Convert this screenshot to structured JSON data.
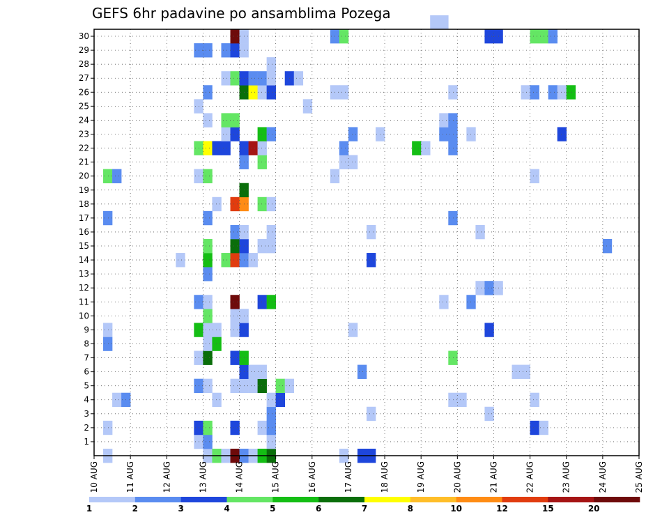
{
  "chart_data": {
    "type": "heatmap",
    "title": "GEFS 6hr padavine po ansamblima Pozega",
    "xlabel": "",
    "ylabel": "",
    "x_tick_labels": [
      "10 AUG",
      "11 AUG",
      "12 AUG",
      "13 AUG",
      "14 AUG",
      "15 AUG",
      "16 AUG",
      "17 AUG",
      "18 AUG",
      "19 AUG",
      "20 AUG",
      "21 AUG",
      "22 AUG",
      "23 AUG",
      "24 AUG",
      "25 AUG"
    ],
    "y_tick_labels": [
      "1",
      "2",
      "3",
      "4",
      "5",
      "6",
      "7",
      "8",
      "9",
      "10",
      "11",
      "12",
      "13",
      "14",
      "15",
      "16",
      "17",
      "18",
      "19",
      "20",
      "21",
      "22",
      "23",
      "24",
      "25",
      "26",
      "27",
      "28",
      "29",
      "30"
    ],
    "x_range": [
      0,
      60
    ],
    "y_range": [
      0,
      30
    ],
    "x_unit_note": "6-hour steps from 10 AUG 00Z",
    "grid": true,
    "colorbar": {
      "labels": [
        "1",
        "2",
        "3",
        "4",
        "5",
        "6",
        "7",
        "8",
        "10",
        "12",
        "15",
        "20"
      ],
      "colors": [
        "#b4c8f8",
        "#5a8cf0",
        "#1e46dc",
        "#64e664",
        "#14be14",
        "#0a6e0a",
        "#ffff00",
        "#ffbe28",
        "#ff8c14",
        "#e13c0f",
        "#a51414",
        "#6e0a0a"
      ]
    },
    "cells": [
      [
        1,
        0,
        1
      ],
      [
        12,
        0,
        1
      ],
      [
        13,
        0,
        4
      ],
      [
        14,
        0,
        1
      ],
      [
        15,
        0,
        12
      ],
      [
        16,
        0,
        2
      ],
      [
        17,
        0,
        1
      ],
      [
        18,
        0,
        5
      ],
      [
        19,
        0,
        6
      ],
      [
        27,
        0,
        1
      ],
      [
        29,
        0,
        3
      ],
      [
        30,
        0,
        3
      ],
      [
        11,
        1,
        1
      ],
      [
        12,
        1,
        2
      ],
      [
        19,
        1,
        1
      ],
      [
        1,
        2,
        1
      ],
      [
        11,
        2,
        3
      ],
      [
        12,
        2,
        4
      ],
      [
        15,
        2,
        3
      ],
      [
        18,
        2,
        1
      ],
      [
        19,
        2,
        2
      ],
      [
        48,
        2,
        3
      ],
      [
        49,
        2,
        1
      ],
      [
        19,
        3,
        2
      ],
      [
        30,
        3,
        1
      ],
      [
        43,
        3,
        1
      ],
      [
        2,
        4,
        1
      ],
      [
        3,
        4,
        2
      ],
      [
        13,
        4,
        1
      ],
      [
        19,
        4,
        1
      ],
      [
        20,
        4,
        3
      ],
      [
        39,
        4,
        1
      ],
      [
        40,
        4,
        1
      ],
      [
        48,
        4,
        1
      ],
      [
        11,
        5,
        2
      ],
      [
        12,
        5,
        1
      ],
      [
        15,
        5,
        1
      ],
      [
        16,
        5,
        1
      ],
      [
        17,
        5,
        1
      ],
      [
        18,
        5,
        6
      ],
      [
        20,
        5,
        4
      ],
      [
        21,
        5,
        1
      ],
      [
        16,
        6,
        3
      ],
      [
        17,
        6,
        1
      ],
      [
        18,
        6,
        1
      ],
      [
        29,
        6,
        2
      ],
      [
        46,
        6,
        1
      ],
      [
        47,
        6,
        1
      ],
      [
        11,
        7,
        1
      ],
      [
        12,
        7,
        6
      ],
      [
        15,
        7,
        3
      ],
      [
        16,
        7,
        5
      ],
      [
        39,
        7,
        4
      ],
      [
        1,
        8,
        2
      ],
      [
        12,
        8,
        1
      ],
      [
        13,
        8,
        5
      ],
      [
        1,
        9,
        1
      ],
      [
        11,
        9,
        5
      ],
      [
        12,
        9,
        1
      ],
      [
        13,
        9,
        1
      ],
      [
        15,
        9,
        1
      ],
      [
        16,
        9,
        3
      ],
      [
        28,
        9,
        1
      ],
      [
        43,
        9,
        3
      ],
      [
        12,
        10,
        4
      ],
      [
        15,
        10,
        1
      ],
      [
        16,
        10,
        1
      ],
      [
        11,
        11,
        2
      ],
      [
        12,
        11,
        1
      ],
      [
        15,
        11,
        12
      ],
      [
        18,
        11,
        3
      ],
      [
        19,
        11,
        5
      ],
      [
        38,
        11,
        1
      ],
      [
        41,
        11,
        2
      ],
      [
        42,
        12,
        1
      ],
      [
        43,
        12,
        2
      ],
      [
        44,
        12,
        1
      ],
      [
        12,
        13,
        2
      ],
      [
        9,
        14,
        1
      ],
      [
        12,
        14,
        5
      ],
      [
        14,
        14,
        4
      ],
      [
        15,
        14,
        10
      ],
      [
        16,
        14,
        2
      ],
      [
        17,
        14,
        1
      ],
      [
        30,
        14,
        3
      ],
      [
        12,
        15,
        4
      ],
      [
        15,
        15,
        6
      ],
      [
        16,
        15,
        3
      ],
      [
        18,
        15,
        1
      ],
      [
        19,
        15,
        1
      ],
      [
        56,
        15,
        2
      ],
      [
        15,
        16,
        2
      ],
      [
        16,
        16,
        1
      ],
      [
        19,
        16,
        1
      ],
      [
        30,
        16,
        1
      ],
      [
        42,
        16,
        1
      ],
      [
        1,
        17,
        2
      ],
      [
        12,
        17,
        2
      ],
      [
        39,
        17,
        2
      ],
      [
        13,
        18,
        1
      ],
      [
        15,
        18,
        10
      ],
      [
        16,
        18,
        9
      ],
      [
        18,
        18,
        4
      ],
      [
        19,
        18,
        1
      ],
      [
        16,
        19,
        6
      ],
      [
        1,
        20,
        4
      ],
      [
        2,
        20,
        2
      ],
      [
        11,
        20,
        1
      ],
      [
        12,
        20,
        4
      ],
      [
        26,
        20,
        1
      ],
      [
        48,
        20,
        1
      ],
      [
        16,
        21,
        2
      ],
      [
        18,
        21,
        4
      ],
      [
        27,
        21,
        1
      ],
      [
        28,
        21,
        1
      ],
      [
        11,
        22,
        4
      ],
      [
        12,
        22,
        7
      ],
      [
        13,
        22,
        3
      ],
      [
        14,
        22,
        3
      ],
      [
        16,
        22,
        3
      ],
      [
        17,
        22,
        11
      ],
      [
        18,
        22,
        1
      ],
      [
        27,
        22,
        2
      ],
      [
        35,
        22,
        5
      ],
      [
        36,
        22,
        1
      ],
      [
        39,
        22,
        2
      ],
      [
        14,
        23,
        1
      ],
      [
        15,
        23,
        3
      ],
      [
        18,
        23,
        5
      ],
      [
        19,
        23,
        2
      ],
      [
        28,
        23,
        2
      ],
      [
        31,
        23,
        1
      ],
      [
        38,
        23,
        2
      ],
      [
        39,
        23,
        2
      ],
      [
        41,
        23,
        1
      ],
      [
        51,
        23,
        3
      ],
      [
        12,
        24,
        1
      ],
      [
        14,
        24,
        4
      ],
      [
        15,
        24,
        4
      ],
      [
        38,
        24,
        1
      ],
      [
        39,
        24,
        2
      ],
      [
        11,
        25,
        1
      ],
      [
        23,
        25,
        1
      ],
      [
        12,
        26,
        2
      ],
      [
        16,
        26,
        6
      ],
      [
        17,
        26,
        7
      ],
      [
        18,
        26,
        1
      ],
      [
        19,
        26,
        3
      ],
      [
        26,
        26,
        1
      ],
      [
        27,
        26,
        1
      ],
      [
        39,
        26,
        1
      ],
      [
        47,
        26,
        1
      ],
      [
        48,
        26,
        2
      ],
      [
        50,
        26,
        2
      ],
      [
        51,
        26,
        1
      ],
      [
        52,
        26,
        5
      ],
      [
        14,
        27,
        1
      ],
      [
        15,
        27,
        4
      ],
      [
        16,
        27,
        3
      ],
      [
        17,
        27,
        2
      ],
      [
        18,
        27,
        2
      ],
      [
        19,
        27,
        1
      ],
      [
        21,
        27,
        3
      ],
      [
        22,
        27,
        1
      ],
      [
        19,
        28,
        1
      ],
      [
        11,
        29,
        2
      ],
      [
        12,
        29,
        2
      ],
      [
        14,
        29,
        2
      ],
      [
        15,
        29,
        3
      ],
      [
        16,
        29,
        1
      ],
      [
        15,
        30,
        12
      ],
      [
        16,
        30,
        1
      ],
      [
        26,
        30,
        2
      ],
      [
        27,
        30,
        4
      ],
      [
        43,
        30,
        3
      ],
      [
        44,
        30,
        3
      ],
      [
        48,
        30,
        4
      ],
      [
        49,
        30,
        4
      ],
      [
        50,
        30,
        2
      ],
      [
        37,
        31,
        1
      ],
      [
        38,
        31,
        1
      ]
    ]
  }
}
